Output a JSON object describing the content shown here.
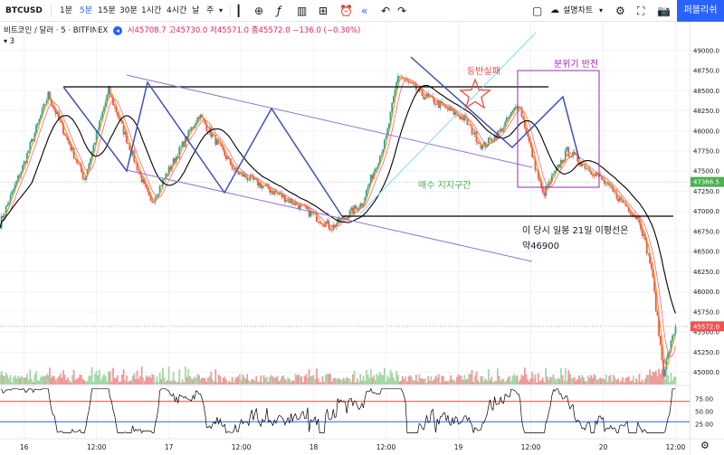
{
  "toolbar": {
    "symbol": "BTCUSD",
    "intervals": [
      "1분",
      "5분",
      "15분",
      "30분",
      "1시간",
      "4시간",
      "날",
      "주"
    ],
    "active_interval": "5분",
    "layout_label": "설명차트",
    "publish_label": "퍼블리쉬"
  },
  "legend": {
    "title": "비트코인 / 달러 · 5 · BITFINEX",
    "ohlc": "시45708.7 고45730.0 저45571.0 종45572.0 −136.0 (−0.30%)",
    "indicator_count": "3"
  },
  "price_axis": {
    "ticks": [
      "49000.0",
      "48750.0",
      "48500.0",
      "48250.0",
      "48000.0",
      "47750.0",
      "47500.0",
      "47250.0",
      "47000.0",
      "46750.0",
      "46500.0",
      "46250.0",
      "46000.0",
      "45750.0",
      "45500.0",
      "45250.0",
      "45000.0"
    ],
    "marker_1": "47366.5",
    "marker_2": "45572.0",
    "marker_1_color": "#4caf50",
    "marker_2_color": "#ef5350"
  },
  "rsi_axis": {
    "ticks": [
      "75.00",
      "50.00",
      "25.00"
    ]
  },
  "time_axis": {
    "ticks": [
      "16",
      "12:00",
      "17",
      "12:00",
      "18",
      "12:00",
      "19",
      "12:00",
      "20",
      "12:00"
    ]
  },
  "annotations": {
    "failed_rebound": "등반실패",
    "sentiment_reversal": "분위기 반전",
    "buy_support_zone": "매수 지지구간",
    "ma21_note_line1": "이 당시 일봉 21일 이평선은",
    "ma21_note_line2": "약46900"
  },
  "colors": {
    "up": "#26a69a",
    "down": "#ef5350",
    "channel": "#9575cd",
    "zigzag": "#3f51b5",
    "ma_fast": "#ff9800",
    "ma_slow": "#000000",
    "rsi_upper": "#f44336",
    "rsi_lower": "#2962ff",
    "publish": "#2962ff"
  },
  "chart_data": {
    "type": "candlestick",
    "symbol": "BTCUSD",
    "exchange": "BITFINEX",
    "interval": "5",
    "ylim": [
      44850,
      49200
    ],
    "x_ticks": [
      "16",
      "12:00",
      "17",
      "12:00",
      "18",
      "12:00",
      "19",
      "12:00",
      "20",
      "12:00"
    ],
    "last": {
      "open": 45708.7,
      "high": 45730.0,
      "low": 45571.0,
      "close": 45572.0,
      "change": -136.0,
      "change_pct": -0.3
    },
    "horizontal_levels": [
      48500,
      46800
    ],
    "close_path": [
      {
        "x": "15 20:00",
        "y": 46850
      },
      {
        "x": "16 00:00",
        "y": 47600
      },
      {
        "x": "16 04:00",
        "y": 48450
      },
      {
        "x": "16 10:00",
        "y": 47400
      },
      {
        "x": "16 14:00",
        "y": 48500
      },
      {
        "x": "16 21:00",
        "y": 47100
      },
      {
        "x": "17 05:00",
        "y": 48200
      },
      {
        "x": "17 11:00",
        "y": 47500
      },
      {
        "x": "17 21:00",
        "y": 47100
      },
      {
        "x": "18 03:00",
        "y": 46800
      },
      {
        "x": "18 08:00",
        "y": 47100
      },
      {
        "x": "18 12:00",
        "y": 47900
      },
      {
        "x": "18 14:00",
        "y": 48700
      },
      {
        "x": "18 18:00",
        "y": 48450
      },
      {
        "x": "19 01:00",
        "y": 48150
      },
      {
        "x": "19 04:00",
        "y": 47800
      },
      {
        "x": "19 07:00",
        "y": 48000
      },
      {
        "x": "19 10:00",
        "y": 48350
      },
      {
        "x": "19 14:00",
        "y": 47200
      },
      {
        "x": "19 18:00",
        "y": 47750
      },
      {
        "x": "19 23:00",
        "y": 47450
      },
      {
        "x": "20 06:00",
        "y": 46900
      },
      {
        "x": "20 08:00",
        "y": 46300
      },
      {
        "x": "20 10:00",
        "y": 45000
      },
      {
        "x": "20 12:00",
        "y": 45572
      }
    ],
    "rsi": {
      "upper": 70,
      "lower": 30
    }
  }
}
